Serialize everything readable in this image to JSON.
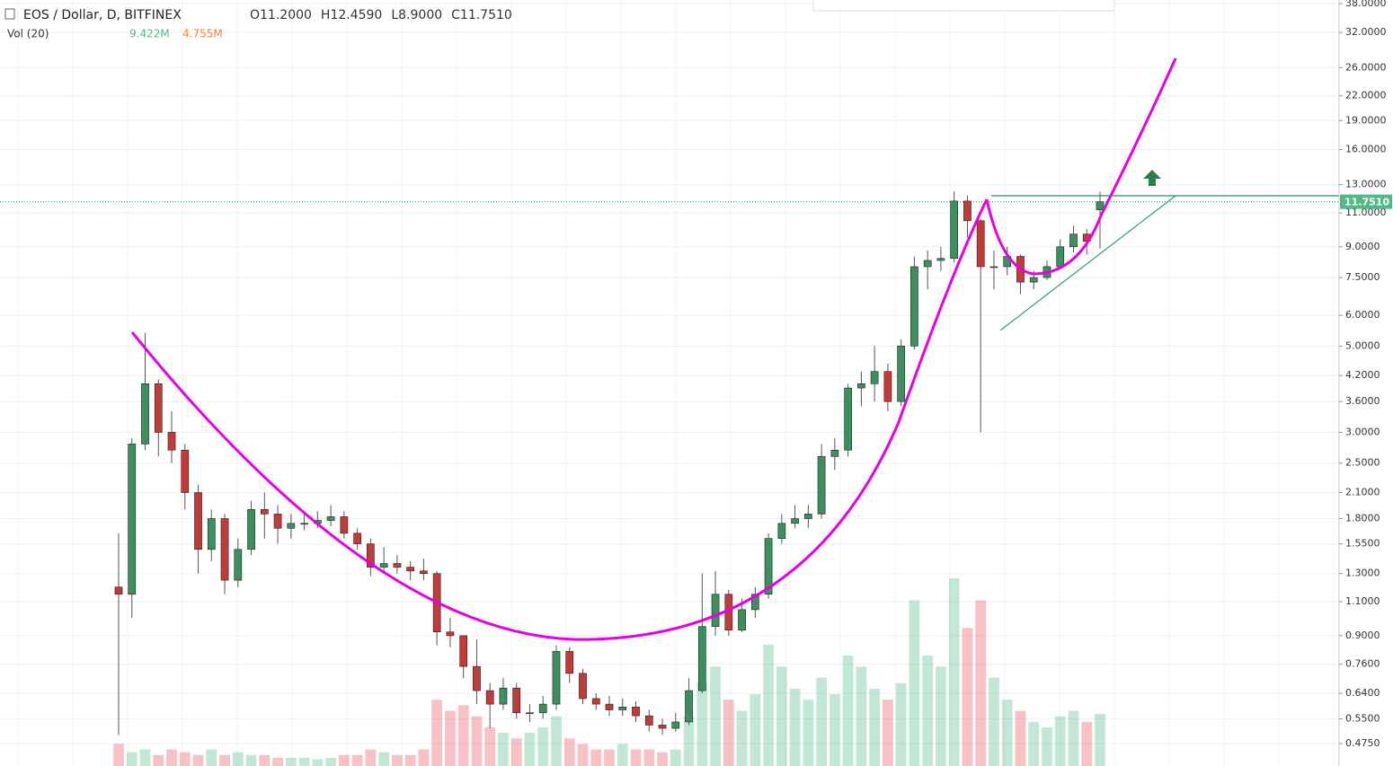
{
  "chart_data": {
    "type": "candlestick",
    "title": "EOS / Dollar, D, BITFINEX",
    "ohlc_labels": [
      "O11.2000",
      "H12.4590",
      "L8.9000",
      "C11.7510"
    ],
    "volume_title": "Vol (20)",
    "volume_labels": [
      "9.422M",
      "4.755M"
    ],
    "log_scale": true,
    "grid": true,
    "up_color": "#53b987",
    "down_color": "#eb4d5c",
    "ylim": [
      0.416,
      38.8
    ],
    "yticks": [
      {
        "value": 38,
        "label": "38.0000"
      },
      {
        "value": 32,
        "label": "32.0000"
      },
      {
        "value": 26,
        "label": "26.0000"
      },
      {
        "value": 22,
        "label": "22.0000"
      },
      {
        "value": 19,
        "label": "19.0000"
      },
      {
        "value": 16,
        "label": "16.0000"
      },
      {
        "value": 13,
        "label": "13.0000"
      },
      {
        "value": 11,
        "label": "11.0000"
      },
      {
        "value": 9,
        "label": "9.0000"
      },
      {
        "value": 7.5,
        "label": "7.5000"
      },
      {
        "value": 6,
        "label": "6.0000"
      },
      {
        "value": 5,
        "label": "5.0000"
      },
      {
        "value": 4.2,
        "label": "4.2000"
      },
      {
        "value": 3.6,
        "label": "3.6000"
      },
      {
        "value": 3,
        "label": "3.0000"
      },
      {
        "value": 2.5,
        "label": "2.5000"
      },
      {
        "value": 2.1,
        "label": "2.1000"
      },
      {
        "value": 1.8,
        "label": "1.8000"
      },
      {
        "value": 1.55,
        "label": "1.5500"
      },
      {
        "value": 1.3,
        "label": "1.3000"
      },
      {
        "value": 1.1,
        "label": "1.1000"
      },
      {
        "value": 0.9,
        "label": "0.9000"
      },
      {
        "value": 0.76,
        "label": "0.7600"
      },
      {
        "value": 0.64,
        "label": "0.6400"
      },
      {
        "value": 0.55,
        "label": "0.5500"
      },
      {
        "value": 0.475,
        "label": "0.4750"
      }
    ],
    "last_price": {
      "value": 11.751,
      "label": "11.7510"
    },
    "open": [
      1.2,
      1.15,
      2.8,
      4.0,
      3.0,
      2.7,
      2.1,
      1.5,
      1.8,
      1.25,
      1.5,
      1.9,
      1.85,
      1.7,
      1.75,
      1.75,
      1.78,
      1.82,
      1.65,
      1.55,
      1.35,
      1.38,
      1.35,
      1.32,
      1.3,
      0.92,
      0.9,
      0.75,
      0.65,
      0.6,
      0.66,
      0.57,
      0.57,
      0.6,
      0.82,
      0.72,
      0.62,
      0.6,
      0.58,
      0.59,
      0.56,
      0.53,
      0.52,
      0.54,
      0.65,
      0.95,
      1.15,
      0.93,
      1.05,
      1.15,
      1.6,
      1.75,
      1.8,
      1.85,
      2.6,
      2.7,
      3.9,
      4.0,
      4.3,
      3.6,
      5.0,
      8.0,
      8.3,
      8.4,
      11.8,
      10.5,
      8.0,
      8.0,
      8.5,
      7.3,
      7.5,
      8.0,
      9.0,
      9.7,
      11.2
    ],
    "high": [
      1.65,
      2.9,
      5.4,
      4.1,
      3.4,
      2.8,
      2.2,
      1.9,
      1.85,
      1.6,
      2.0,
      2.1,
      1.95,
      1.85,
      1.85,
      1.88,
      1.95,
      1.88,
      1.7,
      1.6,
      1.52,
      1.45,
      1.4,
      1.42,
      1.32,
      1.0,
      0.9,
      0.88,
      0.68,
      0.7,
      0.68,
      0.6,
      0.63,
      0.85,
      0.84,
      0.74,
      0.64,
      0.63,
      0.62,
      0.61,
      0.58,
      0.55,
      0.57,
      0.7,
      1.3,
      1.32,
      1.18,
      1.12,
      1.2,
      1.65,
      1.85,
      1.95,
      1.95,
      2.8,
      2.9,
      4.0,
      4.3,
      5.0,
      4.5,
      5.2,
      8.5,
      8.8,
      9.0,
      12.5,
      12.2,
      10.6,
      8.8,
      9.0,
      8.6,
      7.8,
      8.3,
      9.4,
      10.2,
      10.0,
      12.459
    ],
    "low": [
      0.5,
      1.0,
      2.7,
      2.6,
      2.5,
      1.9,
      1.3,
      1.4,
      1.15,
      1.2,
      1.45,
      1.6,
      1.55,
      1.6,
      1.68,
      1.7,
      1.72,
      1.6,
      1.5,
      1.28,
      1.3,
      1.3,
      1.25,
      1.25,
      0.85,
      0.84,
      0.7,
      0.6,
      0.52,
      0.58,
      0.55,
      0.54,
      0.55,
      0.58,
      0.68,
      0.6,
      0.58,
      0.56,
      0.56,
      0.54,
      0.51,
      0.5,
      0.51,
      0.53,
      0.64,
      0.9,
      0.9,
      0.92,
      1.0,
      1.12,
      1.55,
      1.7,
      1.7,
      1.8,
      2.4,
      2.6,
      3.5,
      3.6,
      3.4,
      3.5,
      4.9,
      7.0,
      7.8,
      8.2,
      9.5,
      3.0,
      7.0,
      7.6,
      6.8,
      7.0,
      7.4,
      7.9,
      8.7,
      8.6,
      8.9
    ],
    "close": [
      1.15,
      2.8,
      4.0,
      3.0,
      2.7,
      2.1,
      1.5,
      1.8,
      1.25,
      1.5,
      1.9,
      1.85,
      1.7,
      1.75,
      1.75,
      1.78,
      1.82,
      1.65,
      1.55,
      1.35,
      1.38,
      1.35,
      1.32,
      1.3,
      0.92,
      0.9,
      0.75,
      0.65,
      0.6,
      0.66,
      0.57,
      0.57,
      0.6,
      0.82,
      0.72,
      0.62,
      0.6,
      0.58,
      0.59,
      0.56,
      0.53,
      0.52,
      0.54,
      0.65,
      0.95,
      1.15,
      0.93,
      1.05,
      1.15,
      1.6,
      1.75,
      1.8,
      1.85,
      2.6,
      2.7,
      3.9,
      4.0,
      4.3,
      3.6,
      5.0,
      8.0,
      8.3,
      8.4,
      11.8,
      10.5,
      8.0,
      8.0,
      8.5,
      7.3,
      7.5,
      8.0,
      9.0,
      9.7,
      9.3,
      11.751
    ],
    "volume": [
      4,
      2.5,
      3,
      2,
      3,
      2.5,
      2,
      3,
      2,
      2.5,
      2,
      2,
      1.5,
      1.5,
      1.5,
      1.2,
      1.5,
      2,
      2,
      3,
      2.5,
      2,
      2,
      3,
      12,
      10,
      11,
      9,
      7,
      6,
      5,
      6,
      7,
      9,
      5,
      4,
      3,
      3,
      4,
      3,
      3,
      2.5,
      3,
      9,
      15,
      18,
      12,
      10,
      13,
      22,
      18,
      14,
      12,
      16,
      13,
      20,
      18,
      14,
      12,
      15,
      30,
      20,
      18,
      34,
      25,
      30,
      16,
      12,
      10,
      8,
      7,
      9,
      10,
      8,
      9.422
    ],
    "volume_lim": [
      0,
      40
    ]
  }
}
